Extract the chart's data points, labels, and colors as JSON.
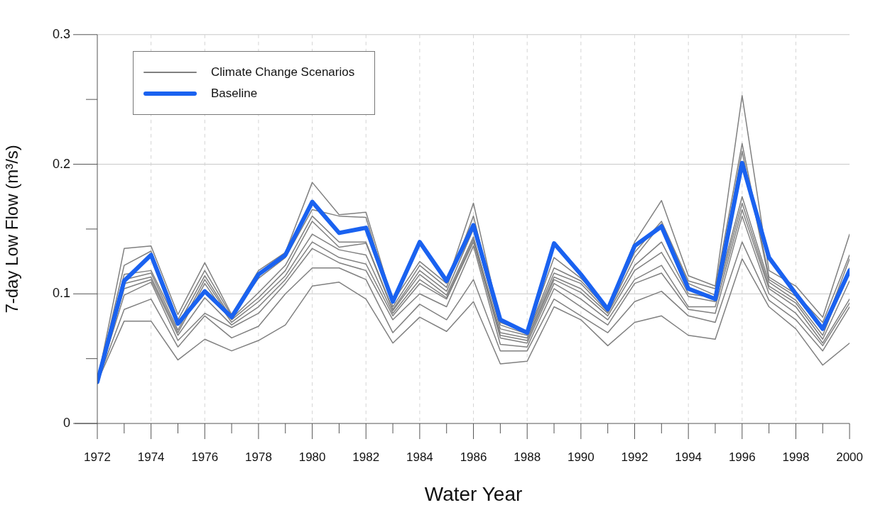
{
  "chart_data": {
    "type": "line",
    "xlabel": "Water Year",
    "ylabel": "7-day Low Flow (m³/s)",
    "x": [
      1972,
      1973,
      1974,
      1975,
      1976,
      1977,
      1978,
      1979,
      1980,
      1981,
      1982,
      1983,
      1984,
      1985,
      1986,
      1987,
      1988,
      1989,
      1990,
      1991,
      1992,
      1993,
      1994,
      1995,
      1996,
      1997,
      1998,
      1999,
      2000
    ],
    "xlim": [
      1972,
      2000
    ],
    "xticks": [
      1972,
      {
        "value": 1973,
        "label": null
      },
      1974,
      {
        "value": 1975,
        "label": null
      },
      1976,
      {
        "value": 1977,
        "label": null
      },
      1978,
      {
        "value": 1979,
        "label": null
      },
      1980,
      {
        "value": 1981,
        "label": null
      },
      1982,
      {
        "value": 1983,
        "label": null
      },
      1984,
      {
        "value": 1985,
        "label": null
      },
      1986,
      {
        "value": 1987,
        "label": null
      },
      1988,
      {
        "value": 1989,
        "label": null
      },
      1990,
      {
        "value": 1991,
        "label": null
      },
      1992,
      {
        "value": 1993,
        "label": null
      },
      1994,
      {
        "value": 1995,
        "label": null
      },
      1996,
      {
        "value": 1997,
        "label": null
      },
      1998,
      {
        "value": 1999,
        "label": null
      },
      2000
    ],
    "ylim": [
      0,
      0.3
    ],
    "yticks": [
      0,
      {
        "value": 0.05,
        "label": null
      },
      0.1,
      {
        "value": 0.15,
        "label": null
      },
      0.2,
      {
        "value": 0.25,
        "label": null
      },
      0.3
    ],
    "grid": true,
    "legend": "top left",
    "series": [
      {
        "name": "Climate Change Scenarios",
        "color": "#808080",
        "values": [
          0.032,
          0.135,
          0.137,
          0.084,
          0.124,
          0.084,
          0.118,
          0.132,
          0.186,
          0.161,
          0.163,
          0.094,
          0.125,
          0.108,
          0.17,
          0.078,
          0.07,
          0.128,
          0.112,
          0.09,
          0.14,
          0.172,
          0.114,
          0.106,
          0.253,
          0.118,
          0.106,
          0.082,
          0.146
        ]
      },
      {
        "color": "#808080",
        "values": [
          0.032,
          0.122,
          0.133,
          0.08,
          0.118,
          0.083,
          0.112,
          0.128,
          0.165,
          0.16,
          0.159,
          0.09,
          0.122,
          0.105,
          0.16,
          0.076,
          0.069,
          0.12,
          0.11,
          0.088,
          0.132,
          0.156,
          0.11,
          0.104,
          0.216,
          0.113,
          0.1,
          0.078,
          0.13
        ]
      },
      {
        "color": "#808080",
        "values": [
          0.032,
          0.115,
          0.118,
          0.076,
          0.114,
          0.081,
          0.101,
          0.122,
          0.16,
          0.14,
          0.14,
          0.088,
          0.118,
          0.102,
          0.15,
          0.073,
          0.068,
          0.116,
          0.108,
          0.086,
          0.128,
          0.154,
          0.108,
          0.099,
          0.21,
          0.111,
          0.098,
          0.072,
          0.127
        ]
      },
      {
        "color": "#808080",
        "values": [
          0.032,
          0.111,
          0.116,
          0.072,
          0.111,
          0.08,
          0.097,
          0.118,
          0.156,
          0.136,
          0.139,
          0.087,
          0.115,
          0.099,
          0.144,
          0.07,
          0.066,
          0.113,
          0.104,
          0.085,
          0.122,
          0.14,
          0.1,
          0.097,
          0.175,
          0.109,
          0.095,
          0.068,
          0.12
        ]
      },
      {
        "color": "#808080",
        "values": [
          0.032,
          0.108,
          0.113,
          0.07,
          0.108,
          0.078,
          0.094,
          0.114,
          0.146,
          0.134,
          0.13,
          0.085,
          0.111,
          0.097,
          0.142,
          0.068,
          0.064,
          0.111,
          0.101,
          0.083,
          0.118,
          0.132,
          0.098,
          0.094,
          0.17,
          0.106,
          0.093,
          0.065,
          0.11
        ]
      },
      {
        "color": "#808080",
        "values": [
          0.032,
          0.104,
          0.111,
          0.068,
          0.097,
          0.076,
          0.09,
          0.111,
          0.14,
          0.128,
          0.123,
          0.083,
          0.108,
          0.096,
          0.14,
          0.066,
          0.062,
          0.108,
          0.096,
          0.08,
          0.111,
          0.122,
          0.09,
          0.09,
          0.165,
          0.104,
          0.09,
          0.062,
          0.096
        ]
      },
      {
        "color": "#808080",
        "values": [
          0.032,
          0.099,
          0.109,
          0.064,
          0.085,
          0.074,
          0.085,
          0.108,
          0.135,
          0.124,
          0.118,
          0.08,
          0.1,
          0.09,
          0.137,
          0.061,
          0.059,
          0.104,
          0.09,
          0.076,
          0.108,
          0.116,
          0.088,
          0.085,
          0.16,
          0.1,
          0.085,
          0.06,
          0.093
        ]
      },
      {
        "color": "#808080",
        "values": [
          0.032,
          0.088,
          0.096,
          0.059,
          0.083,
          0.066,
          0.075,
          0.1,
          0.12,
          0.12,
          0.111,
          0.07,
          0.092,
          0.08,
          0.111,
          0.056,
          0.056,
          0.096,
          0.083,
          0.07,
          0.094,
          0.102,
          0.083,
          0.078,
          0.14,
          0.095,
          0.08,
          0.056,
          0.09
        ]
      },
      {
        "color": "#808080",
        "values": [
          0.032,
          0.079,
          0.079,
          0.049,
          0.065,
          0.056,
          0.064,
          0.076,
          0.106,
          0.109,
          0.096,
          0.062,
          0.082,
          0.071,
          0.094,
          0.046,
          0.048,
          0.09,
          0.08,
          0.06,
          0.078,
          0.083,
          0.068,
          0.065,
          0.127,
          0.09,
          0.073,
          0.045,
          0.062
        ]
      },
      {
        "name": "Baseline",
        "color": "#1a62f0",
        "values": [
          0.032,
          0.11,
          0.13,
          0.077,
          0.102,
          0.082,
          0.115,
          0.13,
          0.171,
          0.147,
          0.151,
          0.094,
          0.14,
          0.11,
          0.153,
          0.08,
          0.07,
          0.139,
          0.115,
          0.088,
          0.137,
          0.152,
          0.104,
          0.096,
          0.201,
          0.128,
          0.1,
          0.073,
          0.118
        ]
      }
    ]
  }
}
